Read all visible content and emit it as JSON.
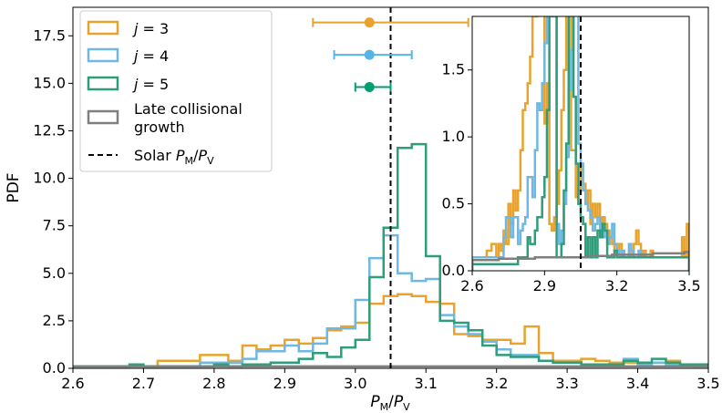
{
  "chart_data": [
    {
      "type": "line",
      "subtype": "step-histogram",
      "xlabel": "P_M/P_V",
      "ylabel": "PDF",
      "xlim": [
        2.6,
        3.5
      ],
      "ylim": [
        0,
        19
      ],
      "xticks": [
        "2.6",
        "2.7",
        "2.8",
        "2.9",
        "3.0",
        "3.1",
        "3.2",
        "3.3",
        "3.4",
        "3.5"
      ],
      "yticks": [
        "0.0",
        "2.5",
        "5.0",
        "7.5",
        "10.0",
        "12.5",
        "15.0",
        "17.5"
      ],
      "solar_ratio": 3.05,
      "bins": {
        "start": 2.6,
        "width": 0.02
      },
      "series": [
        {
          "name": "j = 3",
          "color": "#e8a32e",
          "values": [
            0.1,
            0.1,
            0.1,
            0.1,
            0.1,
            0.1,
            0.4,
            0.4,
            0.4,
            0.7,
            0.7,
            0.4,
            1.2,
            1.0,
            1.2,
            1.5,
            1.3,
            1.6,
            2.0,
            2.2,
            2.4,
            3.4,
            3.8,
            3.9,
            3.8,
            3.5,
            3.4,
            1.8,
            1.7,
            1.5,
            1.5,
            1.3,
            2.2,
            0.8,
            0.4,
            0.4,
            0.5,
            0.4,
            0.3,
            0.3,
            0.2,
            0.3,
            0.4,
            0.2,
            0.2,
            0.2
          ]
        },
        {
          "name": "j = 4",
          "color": "#6fb8e3",
          "values": [
            0.1,
            0.1,
            0.1,
            0.1,
            0.1,
            0.1,
            0.1,
            0.1,
            0.1,
            0.3,
            0.3,
            0.3,
            0.5,
            0.9,
            0.9,
            1.2,
            0.9,
            1.3,
            2.1,
            2.1,
            3.6,
            5.8,
            7.0,
            5.0,
            4.6,
            4.7,
            2.8,
            2.2,
            1.8,
            1.4,
            1.0,
            0.7,
            0.7,
            0.4,
            0.3,
            0.3,
            0.2,
            0.2,
            0.2,
            0.5,
            0.2,
            0.3,
            0.2,
            0.2,
            0.1,
            0.1
          ]
        },
        {
          "name": "j = 5",
          "color": "#2e9e7a",
          "values": [
            0.1,
            0.1,
            0.1,
            0.1,
            0.2,
            0.1,
            0.1,
            0.1,
            0.1,
            0.1,
            0.2,
            0.1,
            0.2,
            0.2,
            0.3,
            0.3,
            0.5,
            0.8,
            0.6,
            1.1,
            1.5,
            4.8,
            7.4,
            11.6,
            11.8,
            5.9,
            2.5,
            2.4,
            2.0,
            1.2,
            0.7,
            0.6,
            0.6,
            0.4,
            0.3,
            0.3,
            0.2,
            0.2,
            0.2,
            0.4,
            0.3,
            0.5,
            0.3,
            0.2,
            0.2,
            0.1
          ]
        },
        {
          "name": "Late collisional growth",
          "color": "#7f7f7f",
          "values": [
            0.1,
            0.1,
            0.1,
            0.1,
            0.1,
            0.1,
            0.1,
            0.1,
            0.1,
            0.1,
            0.1,
            0.1,
            0.1,
            0.1,
            0.1,
            0.1,
            0.1,
            0.1,
            0.1,
            0.1,
            0.1,
            0.1,
            0.1,
            0.1,
            0.1,
            0.1,
            0.1,
            0.1,
            0.1,
            0.1,
            0.1,
            0.1,
            0.1,
            0.1,
            0.1,
            0.1,
            0.1,
            0.1,
            0.1,
            0.1,
            0.1,
            0.1,
            0.1,
            0.1,
            0.1,
            0.1
          ]
        }
      ],
      "error_bars": [
        {
          "series": "j = 3",
          "x": 3.02,
          "y": 18.2,
          "xmin": 2.94,
          "xmax": 3.16,
          "color": "#e8a32e"
        },
        {
          "series": "j = 4",
          "x": 3.02,
          "y": 16.5,
          "xmin": 2.97,
          "xmax": 3.08,
          "color": "#56b4e9"
        },
        {
          "series": "j = 5",
          "x": 3.02,
          "y": 14.8,
          "xmin": 3.0,
          "xmax": 3.05,
          "color": "#009e73"
        }
      ],
      "legend": {
        "placement": "top-left",
        "entries": [
          {
            "label": "j = 3",
            "color": "#e8a32e",
            "kind": "box"
          },
          {
            "label": "j = 4",
            "color": "#6fb8e3",
            "kind": "box"
          },
          {
            "label": "j = 5",
            "color": "#2e9e7a",
            "kind": "box"
          },
          {
            "label_lines": [
              "Late collisional",
              "growth"
            ],
            "color": "#7f7f7f",
            "kind": "box"
          },
          {
            "label": "Solar P_M/P_V",
            "color": "#000000",
            "kind": "dashed"
          }
        ]
      }
    },
    {
      "type": "line",
      "subtype": "step-histogram-inset",
      "placement": "top-right",
      "xlim": [
        2.6,
        3.5
      ],
      "ylim": [
        0,
        1.9
      ],
      "xticks": [
        "2.6",
        "2.9",
        "3.2",
        "3.5"
      ],
      "yticks": [
        "0.0",
        "0.5",
        "1.0",
        "1.5"
      ],
      "solar_ratio": 3.05,
      "bins": {
        "start": 2.6,
        "width": 0.01
      },
      "series": [
        {
          "name": "j = 3",
          "color": "#e8a32e",
          "values": [
            0.1,
            0.1,
            0.1,
            0.1,
            0.1,
            0.1,
            0.15,
            0.15,
            0.2,
            0.2,
            0.1,
            0.2,
            0.15,
            0.3,
            0.2,
            0.5,
            0.35,
            0.6,
            0.45,
            0.6,
            0.9,
            1.2,
            1.25,
            1.4,
            1.6,
            1.95,
            1.9,
            1.95,
            1.95,
            1.95,
            1.1,
            1.4,
            0.35,
            0.3,
            0.4,
            0.5,
            0.75,
            1.2,
            1.5,
            1.95,
            1.95,
            0.9,
            0.9,
            0.55,
            0.6,
            0.8,
            0.65,
            0.5,
            0.6,
            0.35,
            0.5,
            0.4,
            0.5,
            0.35,
            0.4,
            0.35,
            0.3,
            0.25,
            0.2,
            0.15,
            0.15,
            0.2,
            0.15,
            0.1,
            0.1,
            0.15,
            0.1,
            0.2,
            0.3,
            0.2,
            0.1,
            0.15,
            0.1,
            0.1,
            0.15,
            0.1,
            0.1,
            0.1,
            0.1,
            0.1,
            0.1,
            0.1,
            0.1,
            0.1,
            0.1,
            0.1,
            0.1,
            0.25,
            0.1,
            0.35
          ]
        },
        {
          "name": "j = 4",
          "color": "#6fb8e3",
          "values": [
            0.1,
            0.1,
            0.1,
            0.1,
            0.1,
            0.1,
            0.1,
            0.1,
            0.1,
            0.1,
            0.1,
            0.1,
            0.1,
            0.25,
            0.4,
            0.4,
            0.25,
            0.4,
            0.4,
            0.2,
            0.3,
            0.35,
            0.4,
            0.7,
            0.7,
            0.55,
            0.9,
            1.25,
            1.2,
            1.4,
            1.7,
            1.95,
            1.95,
            1.9,
            1.9,
            0.35,
            0.2,
            0.3,
            0.5,
            0.85,
            1.35,
            1.65,
            1.95,
            1.95,
            0.95,
            0.8,
            0.6,
            0.5,
            0.45,
            0.4,
            0.3,
            0.35,
            0.4,
            0.3,
            0.25,
            0.3,
            0.2,
            0.25,
            0.35,
            0.2,
            0.15,
            0.1,
            0.15,
            0.1,
            0.1,
            0.2,
            0.15,
            0.1,
            0.1,
            0.15,
            0.1,
            0.1,
            0.1,
            0.1,
            0.1,
            0.1,
            0.1,
            0.1,
            0.1,
            0.1,
            0.1,
            0.1,
            0.1,
            0.1,
            0.1,
            0.1,
            0.1,
            0.1,
            0.1,
            0.1
          ]
        },
        {
          "name": "j = 5",
          "color": "#2e9e7a",
          "values": [
            0.05,
            0.05,
            0.05,
            0.05,
            0.05,
            0.05,
            0.05,
            0.05,
            0.05,
            0.05,
            0.05,
            0.05,
            0.05,
            0.05,
            0.05,
            0.05,
            0.05,
            0.05,
            0.05,
            0.1,
            0.1,
            0.1,
            0.1,
            0.25,
            0.2,
            0.2,
            0.3,
            0.4,
            0.4,
            0.55,
            0.7,
            1.2,
            1.95,
            1.95,
            1.95,
            0.1,
            0.1,
            0.2,
            0.6,
            0.95,
            1.95,
            1.95,
            1.3,
            0.8,
            0.5,
            0.4,
            0.35,
            0.1,
            0.25,
            0.1,
            0.25,
            0.1,
            0.3,
            0.25,
            0.35,
            0.3,
            0.1,
            0.1,
            0.1,
            0.15,
            0.1,
            0.1,
            0.1,
            0.1,
            0.1,
            0.1,
            0.1,
            0.1,
            0.1,
            0.1,
            0.1,
            0.1,
            0.1,
            0.1,
            0.1,
            0.1,
            0.1,
            0.1,
            0.1,
            0.1,
            0.1,
            0.1,
            0.1,
            0.1,
            0.1,
            0.1,
            0.1,
            0.1,
            0.1,
            0.1
          ]
        },
        {
          "name": "Late collisional growth",
          "color": "#7f7f7f",
          "values": [
            0.08,
            0.08,
            0.08,
            0.08,
            0.08,
            0.08,
            0.08,
            0.08,
            0.08,
            0.08,
            0.08,
            0.09,
            0.09,
            0.09,
            0.09,
            0.09,
            0.09,
            0.09,
            0.09,
            0.09,
            0.09,
            0.09,
            0.09,
            0.09,
            0.09,
            0.09,
            0.1,
            0.1,
            0.1,
            0.1,
            0.1,
            0.1,
            0.1,
            0.1,
            0.1,
            0.1,
            0.1,
            0.1,
            0.1,
            0.1,
            0.1,
            0.1,
            0.1,
            0.1,
            0.1,
            0.1,
            0.1,
            0.1,
            0.11,
            0.11,
            0.11,
            0.11,
            0.11,
            0.11,
            0.11,
            0.11,
            0.11,
            0.11,
            0.12,
            0.12,
            0.12,
            0.12,
            0.12,
            0.12,
            0.12,
            0.12,
            0.12,
            0.12,
            0.12,
            0.12,
            0.12,
            0.12,
            0.12,
            0.12,
            0.12,
            0.13,
            0.13,
            0.13,
            0.13,
            0.13,
            0.13,
            0.13,
            0.13,
            0.13,
            0.13,
            0.13,
            0.13,
            0.13,
            0.14,
            0.14
          ]
        }
      ]
    }
  ]
}
